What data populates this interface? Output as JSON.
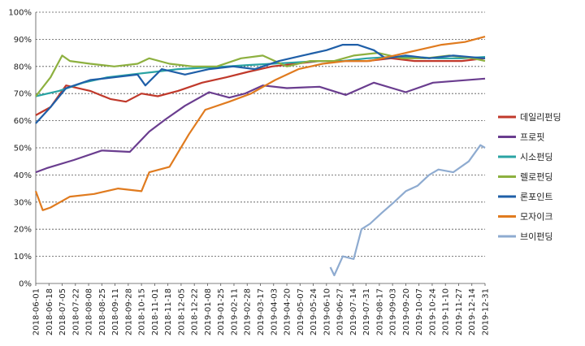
{
  "chart_data": {
    "type": "line",
    "title": "",
    "xlabel": "",
    "ylabel": "",
    "ylim": [
      0,
      100
    ],
    "yticks": [
      "0%",
      "10%",
      "20%",
      "30%",
      "40%",
      "50%",
      "60%",
      "70%",
      "80%",
      "90%",
      "100%"
    ],
    "grid": "horizontal dashed",
    "legend_position": "right",
    "x_tick_labels": [
      "2018-06-01",
      "2018-06-18",
      "2018-07-05",
      "2018-07-22",
      "2018-08-08",
      "2018-08-25",
      "2018-09-11",
      "2018-09-28",
      "2018-10-15",
      "2018-11-01",
      "2018-11-18",
      "2018-12-05",
      "2018-12-22",
      "2019-01-08",
      "2019-01-25",
      "2019-02-11",
      "2019-02-28",
      "2019-03-17",
      "2019-04-03",
      "2019-04-20",
      "2019-05-07",
      "2019-05-24",
      "2019-06-10",
      "2019-06-27",
      "2019-07-14",
      "2019-07-31",
      "2019-08-17",
      "2019-09-03",
      "2019-09-20",
      "2019-10-07",
      "2019-10-24",
      "2019-11-10",
      "2019-11-27",
      "2019-12-14",
      "2019-12-31"
    ],
    "series": [
      {
        "name": "데일리펀딩",
        "color": "#c0392b",
        "x": [
          "2018-06-01",
          "2018-06-20",
          "2018-07-10",
          "2018-08-10",
          "2018-09-05",
          "2018-09-25",
          "2018-10-15",
          "2018-11-05",
          "2018-12-01",
          "2019-01-01",
          "2019-02-01",
          "2019-03-01",
          "2019-04-01",
          "2019-05-01",
          "2019-06-01",
          "2019-07-01",
          "2019-08-01",
          "2019-09-01",
          "2019-10-01",
          "2019-11-01",
          "2019-12-01",
          "2019-12-31"
        ],
        "values": [
          62,
          65,
          73,
          71,
          68,
          67,
          70,
          69,
          71,
          74,
          76,
          78,
          80,
          81,
          82,
          82,
          82,
          83,
          82,
          82,
          82,
          83
        ]
      },
      {
        "name": "프로핏",
        "color": "#6a3d8f",
        "x": [
          "2018-06-01",
          "2018-06-15",
          "2018-07-20",
          "2018-08-25",
          "2018-09-30",
          "2018-10-25",
          "2018-11-15",
          "2018-12-10",
          "2019-01-10",
          "2019-02-05",
          "2019-02-25",
          "2019-03-20",
          "2019-04-20",
          "2019-06-01",
          "2019-07-05",
          "2019-08-10",
          "2019-09-20",
          "2019-10-25",
          "2019-12-31"
        ],
        "values": [
          41,
          42.5,
          45.5,
          49,
          48.5,
          56,
          60.5,
          65.5,
          70.5,
          68.5,
          70,
          73,
          72,
          72.5,
          69.5,
          74,
          70.5,
          74,
          75.5
        ]
      },
      {
        "name": "시소펀딩",
        "color": "#2aa3a3",
        "x": [
          "2018-06-01",
          "2018-07-01",
          "2018-08-01",
          "2018-09-01",
          "2018-10-01",
          "2018-11-01",
          "2018-12-01",
          "2019-01-01",
          "2019-02-01",
          "2019-03-01",
          "2019-04-01",
          "2019-05-01",
          "2019-06-01",
          "2019-07-01",
          "2019-08-01",
          "2019-09-01",
          "2019-10-01",
          "2019-11-01",
          "2019-12-01",
          "2019-12-31"
        ],
        "values": [
          69,
          71,
          74,
          76,
          77,
          78,
          79,
          79.5,
          80,
          80.5,
          81,
          81.5,
          82,
          82,
          83,
          83.5,
          83.5,
          83,
          83,
          83.5
        ]
      },
      {
        "name": "렐로펀딩",
        "color": "#8db03f",
        "x": [
          "2018-06-01",
          "2018-06-20",
          "2018-07-05",
          "2018-07-15",
          "2018-08-10",
          "2018-09-10",
          "2018-10-10",
          "2018-10-25",
          "2018-11-20",
          "2018-12-20",
          "2019-01-20",
          "2019-02-20",
          "2019-03-20",
          "2019-04-20",
          "2019-05-20",
          "2019-06-20",
          "2019-07-15",
          "2019-08-15",
          "2019-09-15",
          "2019-10-15",
          "2019-11-15",
          "2019-12-15",
          "2019-12-31"
        ],
        "values": [
          69,
          76,
          84,
          82,
          81,
          80,
          81,
          83,
          81,
          80,
          80,
          83,
          84,
          80,
          82,
          82,
          84,
          85,
          83,
          83,
          84,
          83,
          82
        ]
      },
      {
        "name": "론포인트",
        "color": "#1f5fa8",
        "x": [
          "2018-06-01",
          "2018-06-20",
          "2018-07-10",
          "2018-08-10",
          "2018-09-10",
          "2018-10-10",
          "2018-10-20",
          "2018-11-10",
          "2018-12-10",
          "2019-01-10",
          "2019-02-10",
          "2019-03-10",
          "2019-04-10",
          "2019-05-10",
          "2019-06-10",
          "2019-07-01",
          "2019-07-20",
          "2019-08-10",
          "2019-08-25",
          "2019-09-20",
          "2019-10-20",
          "2019-11-20",
          "2019-12-31"
        ],
        "values": [
          59,
          65,
          72,
          75,
          76,
          77,
          73,
          79,
          77,
          79,
          80,
          79,
          82,
          84,
          86,
          88,
          88,
          86,
          83,
          84,
          83,
          84,
          83
        ]
      },
      {
        "name": "모자이크",
        "color": "#e07b1f",
        "x": [
          "2018-06-01",
          "2018-06-10",
          "2018-06-20",
          "2018-07-15",
          "2018-08-15",
          "2018-09-15",
          "2018-10-15",
          "2018-10-25",
          "2018-11-20",
          "2018-12-15",
          "2019-01-05",
          "2019-02-05",
          "2019-03-05",
          "2019-04-05",
          "2019-05-05",
          "2019-06-05",
          "2019-07-05",
          "2019-08-05",
          "2019-09-05",
          "2019-10-05",
          "2019-11-05",
          "2019-12-05",
          "2019-12-31"
        ],
        "values": [
          34,
          27,
          28,
          32,
          33,
          35,
          34,
          41,
          43,
          55,
          64,
          67,
          70,
          75,
          79,
          81,
          82,
          82,
          84,
          86,
          88,
          89,
          91
        ]
      },
      {
        "name": "브이펀딩",
        "color": "#8eabd0",
        "x": [
          "2019-06-15",
          "2019-06-20",
          "2019-07-01",
          "2019-07-15",
          "2019-07-25",
          "2019-08-05",
          "2019-08-20",
          "2019-09-05",
          "2019-09-20",
          "2019-10-05",
          "2019-10-20",
          "2019-11-01",
          "2019-11-20",
          "2019-12-10",
          "2019-12-25",
          "2019-12-31"
        ],
        "values": [
          6,
          3,
          10,
          9,
          20,
          22,
          26,
          30,
          34,
          36,
          40,
          42,
          41,
          45,
          51,
          50
        ]
      }
    ]
  }
}
